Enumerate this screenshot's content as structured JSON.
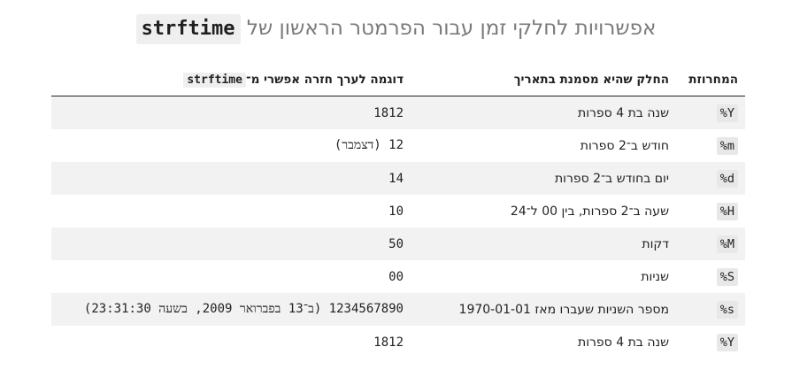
{
  "title": {
    "text": "אפשרויות לחלקי זמן עבור הפרמטר הראשון של",
    "code": "strftime"
  },
  "table": {
    "headers": {
      "directive": "המחרוזת",
      "meaning": "החלק שהיא מסמנת בתאריך",
      "example_text": "דוגמה לערך חזרה אפשרי מ־",
      "example_code": "strftime"
    },
    "rows": [
      {
        "directive": "%Y",
        "meaning": "שנה בת 4 ספרות",
        "example": "1812"
      },
      {
        "directive": "%m",
        "meaning": "חודש ב־2 ספרות",
        "example": "12 (דצמבר)"
      },
      {
        "directive": "%d",
        "meaning": "יום בחודש ב־2 ספרות",
        "example": "14"
      },
      {
        "directive": "%H",
        "meaning": "שעה ב־2 ספרות, בין 00 ל־24",
        "example": "10"
      },
      {
        "directive": "%M",
        "meaning": "דקות",
        "example": "50"
      },
      {
        "directive": "%S",
        "meaning": "שניות",
        "example": "00"
      },
      {
        "directive": "%s",
        "meaning": "מספר השניות שעברו מאז 1970-01-01",
        "example": "1234567890 (ב־13 בפברואר 2009, בשעה 23:31:30)"
      },
      {
        "directive": "%Y",
        "meaning": "שנה בת 4 ספרות",
        "example": "1812"
      }
    ]
  }
}
